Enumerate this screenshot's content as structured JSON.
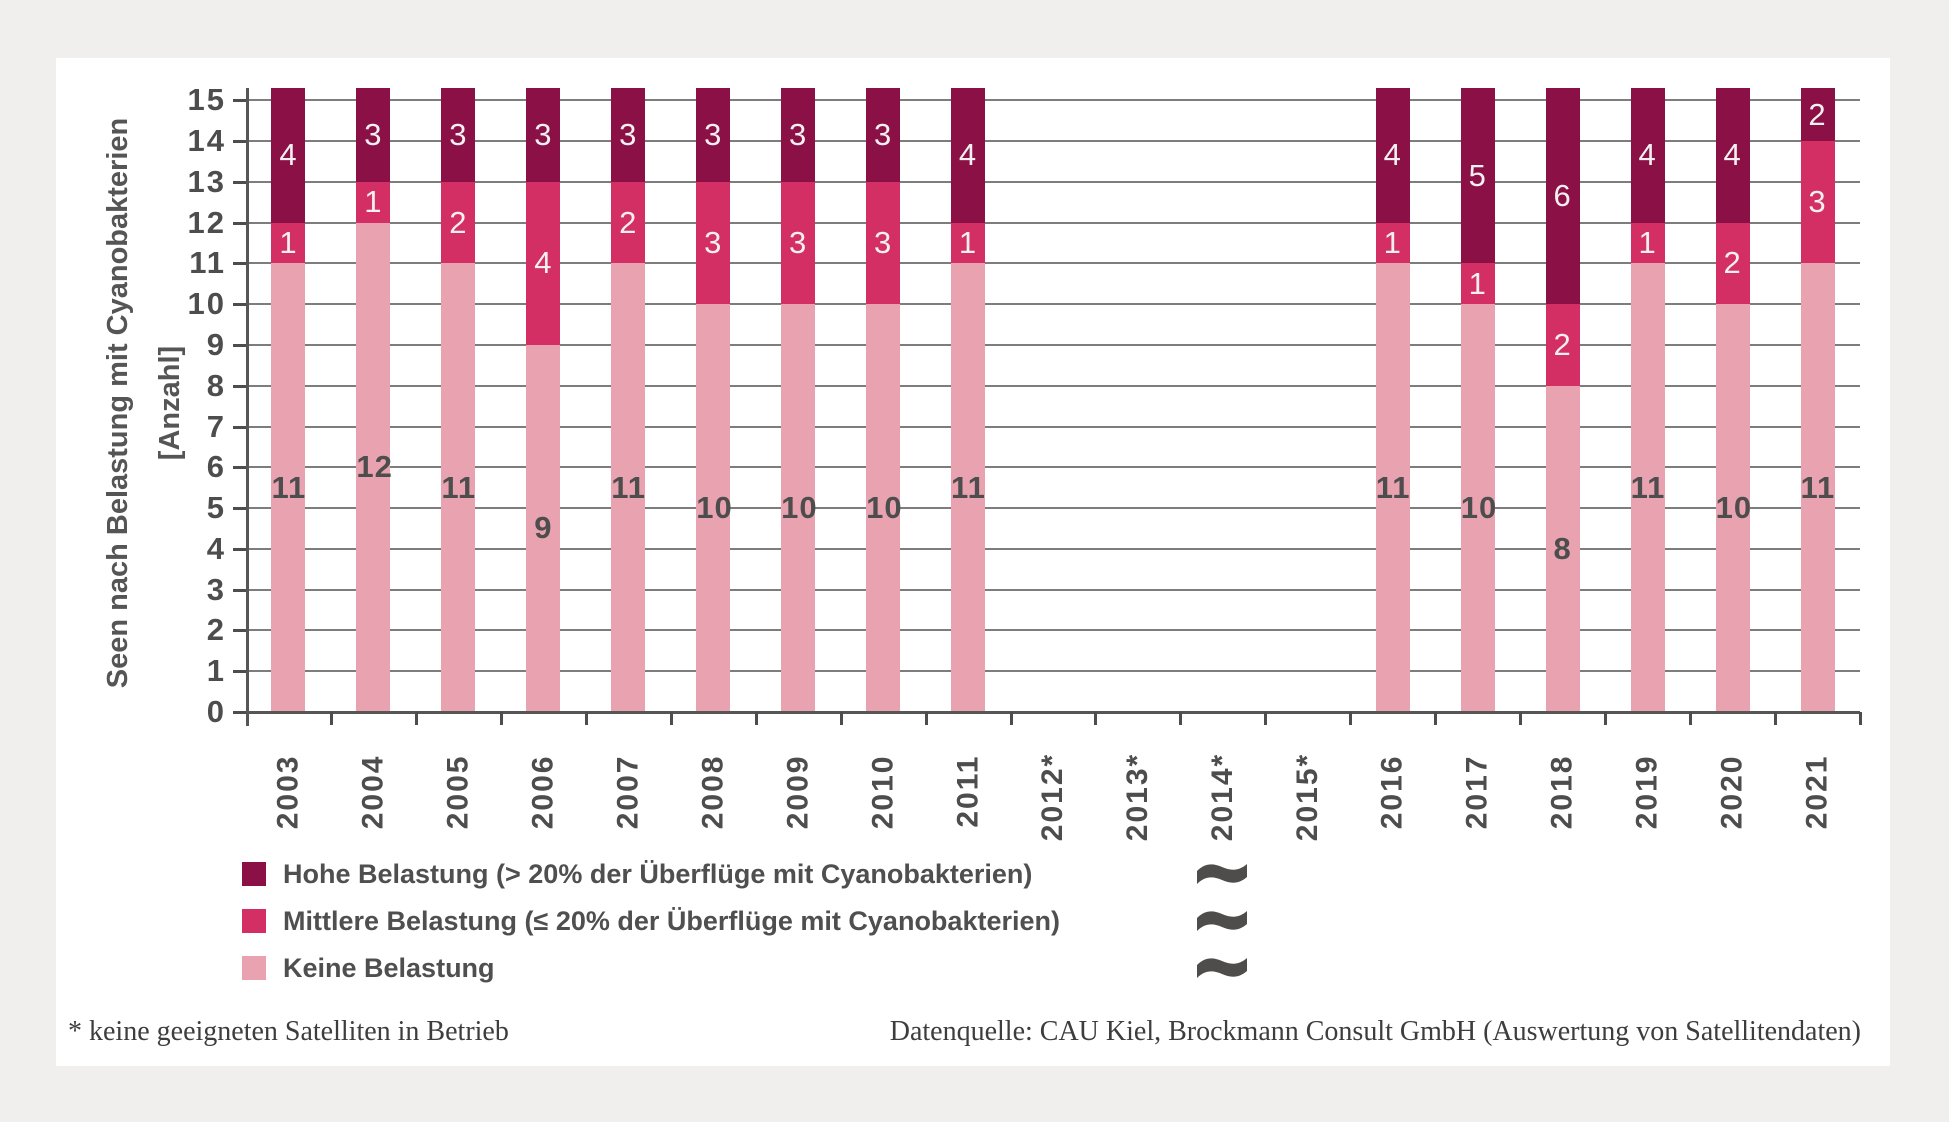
{
  "page": {
    "background": "#f0efed",
    "card_background": "#ffffff"
  },
  "chart_data": {
    "type": "bar",
    "stacked": true,
    "title": "",
    "ylabel_line1": "Seen nach Belastung mit Cyanobakterien",
    "ylabel_line2": "[Anzahl]",
    "xlabel": "",
    "ylim": [
      0,
      15
    ],
    "ymax_visible": 15.3,
    "bars_clipped_at_top": true,
    "bar_total_per_year": 16,
    "grid": true,
    "y_ticks": [
      "0",
      "1",
      "2",
      "3",
      "4",
      "5",
      "6",
      "7",
      "8",
      "9",
      "10",
      "11",
      "12",
      "13",
      "14",
      "15"
    ],
    "categories": [
      "2003",
      "2004",
      "2005",
      "2006",
      "2007",
      "2008",
      "2009",
      "2010",
      "2011",
      "2012*",
      "2013*",
      "2014*",
      "2015*",
      "2016",
      "2017",
      "2018",
      "2019",
      "2020",
      "2021"
    ],
    "series": [
      {
        "name": "Keine Belastung",
        "color": "#e9a2b0",
        "label_style": "dark",
        "values": [
          11,
          12,
          11,
          9,
          11,
          10,
          10,
          10,
          11,
          null,
          null,
          null,
          null,
          11,
          10,
          8,
          11,
          10,
          11
        ]
      },
      {
        "name": "Mittlere Belastung (≤ 20% der Überflüge mit Cyanobakterien)",
        "color": "#d32f65",
        "label_style": "light",
        "values": [
          1,
          1,
          2,
          4,
          2,
          3,
          3,
          3,
          1,
          null,
          null,
          null,
          null,
          1,
          1,
          2,
          1,
          2,
          3
        ]
      },
      {
        "name": "Hohe Belastung (> 20% der Überflüge mit Cyanobakterien)",
        "color": "#8a1046",
        "label_style": "light",
        "values": [
          4,
          3,
          3,
          3,
          3,
          3,
          3,
          3,
          4,
          null,
          null,
          null,
          null,
          4,
          5,
          6,
          4,
          4,
          2
        ]
      }
    ],
    "legend_position": "bottom-left"
  },
  "legend": {
    "items": [
      {
        "label": "Hohe Belastung (> 20% der Überflüge mit Cyanobakterien)",
        "color": "#8a1046"
      },
      {
        "label": "Mittlere Belastung (≤ 20% der Überflüge mit Cyanobakterien)",
        "color": "#d32f65"
      },
      {
        "label": "Keine Belastung",
        "color": "#e9a2b0"
      }
    ],
    "wave_icon_color": "#4f4c4c"
  },
  "footer": {
    "footnote": "* keine geeigneten Satelliten in Betrieb",
    "source": "Datenquelle: CAU Kiel, Brockmann Consult GmbH (Auswertung von Satellitendaten)"
  }
}
